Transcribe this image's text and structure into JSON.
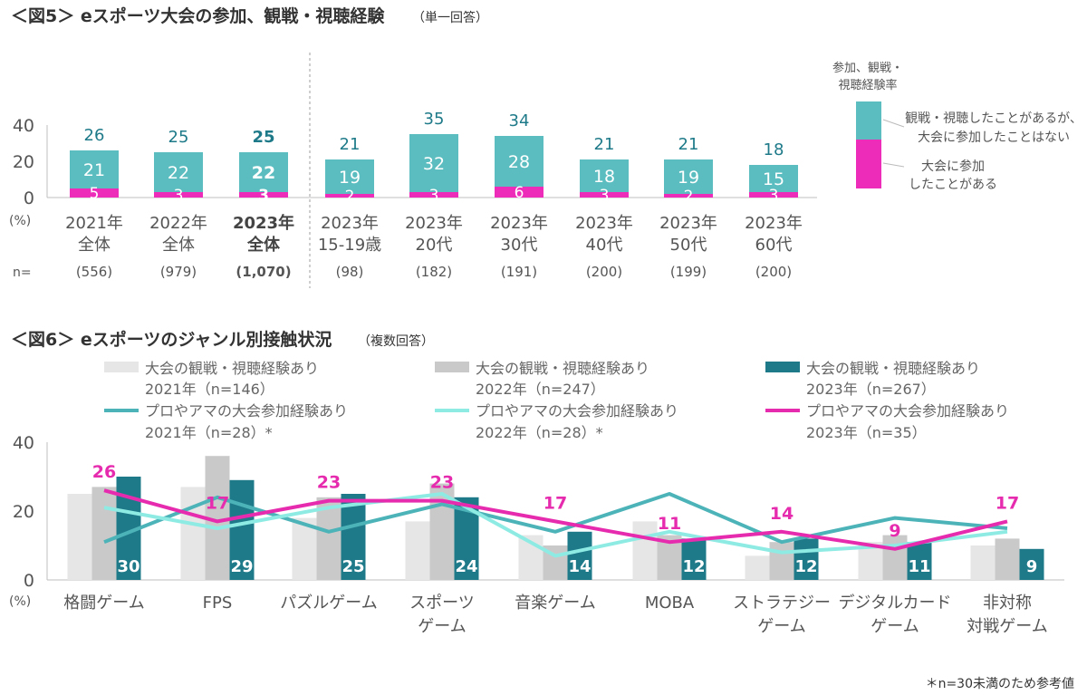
{
  "chart_data": [
    {
      "type": "bar",
      "stacked": true,
      "title": "＜図5＞ eスポーツ大会の参加、観戦・視聴経験",
      "subtitle": "（単一回答）",
      "ylabel": "(%)",
      "ylim": [
        0,
        40
      ],
      "yticks": [
        0,
        20,
        40
      ],
      "n_prefix": "n=",
      "categories": [
        {
          "line1": "2021年",
          "line2": "全体",
          "n": "(556)",
          "bold": false
        },
        {
          "line1": "2022年",
          "line2": "全体",
          "n": "(979)",
          "bold": false
        },
        {
          "line1": "2023年",
          "line2": "全体",
          "n": "(1,070)",
          "bold": true
        },
        {
          "line1": "2023年",
          "line2": "15-19歳",
          "n": "(98)",
          "bold": false
        },
        {
          "line1": "2023年",
          "line2": "20代",
          "n": "(182)",
          "bold": false
        },
        {
          "line1": "2023年",
          "line2": "30代",
          "n": "(191)",
          "bold": false
        },
        {
          "line1": "2023年",
          "line2": "40代",
          "n": "(200)",
          "bold": false
        },
        {
          "line1": "2023年",
          "line2": "50代",
          "n": "(199)",
          "bold": false
        },
        {
          "line1": "2023年",
          "line2": "60代",
          "n": "(200)",
          "bold": false
        }
      ],
      "series": [
        {
          "name": "大会に参加したことがある",
          "name_line1": "大会に参加",
          "name_line2": "したことがある",
          "color": "#EE2CBA",
          "values": [
            5,
            3,
            3,
            2,
            3,
            6,
            3,
            2,
            3
          ]
        },
        {
          "name": "観戦・視聴したことがあるが、大会に参加したことはない",
          "name_line1": "観戦・視聴したことがあるが、",
          "name_line2": "大会に参加したことはない",
          "color": "#5BBDBF",
          "values": [
            21,
            22,
            22,
            19,
            32,
            28,
            18,
            19,
            15
          ]
        }
      ],
      "totals": [
        26,
        25,
        25,
        21,
        35,
        34,
        21,
        21,
        18
      ],
      "legend_title_line1": "参加、観戦・",
      "legend_title_line2": "視聴経験率",
      "legend_position": "right"
    },
    {
      "type": "bar+line",
      "title": "＜図6＞ eスポーツのジャンル別接触状況",
      "subtitle": "（複数回答）",
      "ylabel": "(%)",
      "ylim": [
        0,
        40
      ],
      "yticks": [
        0,
        20,
        40
      ],
      "categories": [
        {
          "line1": "格闘ゲーム",
          "line2": ""
        },
        {
          "line1": "FPS",
          "line2": ""
        },
        {
          "line1": "パズルゲーム",
          "line2": ""
        },
        {
          "line1": "スポーツ",
          "line2": "ゲーム"
        },
        {
          "line1": "音楽ゲーム",
          "line2": ""
        },
        {
          "line1": "MOBA",
          "line2": ""
        },
        {
          "line1": "ストラテジー",
          "line2": "ゲーム"
        },
        {
          "line1": "デジタルカード",
          "line2": "ゲーム"
        },
        {
          "line1": "非対称",
          "line2": "対戦ゲーム"
        }
      ],
      "bar_series": [
        {
          "name": "大会の観戦・視聴経験あり",
          "year_n": "2021年（n=146）",
          "color": "#E6E6E6",
          "values": [
            25,
            27,
            18,
            17,
            13,
            17,
            7,
            11,
            10
          ],
          "show_labels": false
        },
        {
          "name": "大会の観戦・視聴経験あり",
          "year_n": "2022年（n=247）",
          "color": "#C9C9C9",
          "values": [
            27,
            36,
            24,
            28,
            10,
            13,
            11,
            13,
            12
          ],
          "show_labels": false
        },
        {
          "name": "大会の観戦・視聴経験あり",
          "year_n": "2023年（n=267）",
          "color": "#1E7A89",
          "values": [
            30,
            29,
            25,
            24,
            14,
            12,
            12,
            11,
            9
          ],
          "show_labels": true
        }
      ],
      "line_series": [
        {
          "name": "プロやアマの大会参加経験あり",
          "year_n": "2021年（n=28）*",
          "color": "#4CB3B8",
          "values": [
            11,
            24,
            14,
            22,
            14,
            25,
            11,
            18,
            15
          ],
          "show_labels": false
        },
        {
          "name": "プロやアマの大会参加経験あり",
          "year_n": "2022年（n=28）*",
          "color": "#8EEBE4",
          "values": [
            21,
            15,
            21,
            25,
            7,
            14,
            8,
            10,
            14
          ],
          "show_labels": false
        },
        {
          "name": "プロやアマの大会参加経験あり",
          "year_n": "2023年（n=35）",
          "color": "#E62BAE",
          "values": [
            26,
            17,
            23,
            23,
            17,
            11,
            14,
            9,
            17
          ],
          "show_labels": true
        }
      ],
      "footnote": "＊n=30未満のため参考値"
    }
  ]
}
